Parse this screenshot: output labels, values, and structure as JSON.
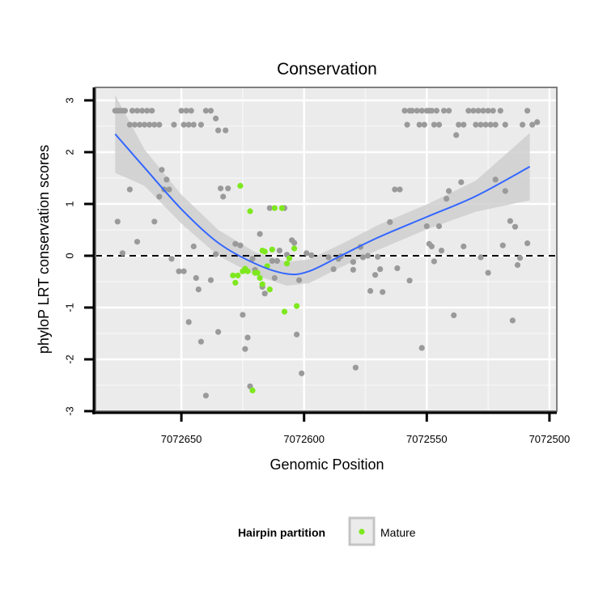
{
  "chart_data": {
    "type": "scatter",
    "title": "Conservation",
    "xlabel": "Genomic Position",
    "ylabel": "phyloP LRT conservation scores",
    "x_reversed": true,
    "xlim": [
      7072685,
      7072497
    ],
    "ylim": [
      -3,
      3.25
    ],
    "x_ticks": [
      7072650,
      7072600,
      7072550,
      7072500
    ],
    "x_tick_labels": [
      "7072650",
      "7072600",
      "7072550",
      "7072500"
    ],
    "y_ticks": [
      -3,
      -2,
      -1,
      0,
      1,
      2,
      3
    ],
    "y_tick_labels": [
      "-3",
      "-2",
      "-1",
      "0",
      "1",
      "2",
      "3"
    ],
    "reference_line": {
      "y": 0,
      "style": "dashed"
    },
    "legend": {
      "title": "Hairpin partition",
      "entries": [
        {
          "label": "Mature",
          "color": "#7ee81e"
        }
      ]
    },
    "colors": {
      "other": "#9a9a9a",
      "mature": "#7ee81e",
      "smooth": "#3366ff",
      "ribbon": "#cfcfcf",
      "panel": "#ebebeb"
    },
    "series": [
      {
        "name": "Other",
        "points": [
          [
            7072677,
            2.8
          ],
          [
            7072676,
            2.8
          ],
          [
            7072675,
            2.8
          ],
          [
            7072674,
            2.8
          ],
          [
            7072673,
            2.8
          ],
          [
            7072671,
            2.53
          ],
          [
            7072670,
            2.8
          ],
          [
            7072669,
            2.53
          ],
          [
            7072668,
            2.8
          ],
          [
            7072667,
            2.53
          ],
          [
            7072666,
            2.8
          ],
          [
            7072665,
            2.53
          ],
          [
            7072664,
            2.8
          ],
          [
            7072663,
            2.53
          ],
          [
            7072662,
            2.8
          ],
          [
            7072661,
            2.53
          ],
          [
            7072659,
            2.53
          ],
          [
            7072653,
            2.53
          ],
          [
            7072650,
            2.8
          ],
          [
            7072649,
            2.53
          ],
          [
            7072648,
            2.8
          ],
          [
            7072647,
            2.53
          ],
          [
            7072646,
            2.8
          ],
          [
            7072645,
            2.53
          ],
          [
            7072642,
            2.53
          ],
          [
            7072640,
            2.8
          ],
          [
            7072638,
            2.8
          ],
          [
            7072636,
            2.65
          ],
          [
            7072635,
            2.42
          ],
          [
            7072632,
            2.42
          ],
          [
            7072676,
            0.66
          ],
          [
            7072674,
            0.05
          ],
          [
            7072671,
            1.28
          ],
          [
            7072668,
            0.27
          ],
          [
            7072661,
            0.66
          ],
          [
            7072659,
            1.14
          ],
          [
            7072658,
            1.66
          ],
          [
            7072657,
            1.28
          ],
          [
            7072656,
            1.47
          ],
          [
            7072655,
            1.28
          ],
          [
            7072654,
            -0.06
          ],
          [
            7072651,
            -0.3
          ],
          [
            7072649,
            -0.3
          ],
          [
            7072647,
            -1.28
          ],
          [
            7072645,
            0.18
          ],
          [
            7072644,
            -0.43
          ],
          [
            7072643,
            -0.65
          ],
          [
            7072642,
            -1.66
          ],
          [
            7072640,
            -2.7
          ],
          [
            7072638,
            -0.47
          ],
          [
            7072636,
            0.03
          ],
          [
            7072635,
            -1.47
          ],
          [
            7072634,
            1.3
          ],
          [
            7072633,
            1.14
          ],
          [
            7072631,
            1.3
          ],
          [
            7072628,
            0.23
          ],
          [
            7072626,
            0.2
          ],
          [
            7072625,
            -1.14
          ],
          [
            7072624,
            -1.8
          ],
          [
            7072623,
            -1.58
          ],
          [
            7072622,
            -2.52
          ],
          [
            7072621,
            -0.06
          ],
          [
            7072620,
            -0.27
          ],
          [
            7072618,
            0.42
          ],
          [
            7072617,
            -0.6
          ],
          [
            7072616,
            -0.73
          ],
          [
            7072614,
            0.92
          ],
          [
            7072613,
            -0.1
          ],
          [
            7072612,
            -0.43
          ],
          [
            7072611,
            -0.1
          ],
          [
            7072610,
            0.1
          ],
          [
            7072608,
            0.92
          ],
          [
            7072607,
            0.02
          ],
          [
            7072605,
            0.3
          ],
          [
            7072604,
            0.25
          ],
          [
            7072603,
            -1.52
          ],
          [
            7072602,
            -0.47
          ],
          [
            7072601,
            -2.27
          ],
          [
            7072599,
            0.05
          ],
          [
            7072597,
            0.01
          ],
          [
            7072590,
            -0.03
          ],
          [
            7072588,
            -0.26
          ],
          [
            7072586,
            -0.06
          ],
          [
            7072585,
            -0.01
          ],
          [
            7072580,
            -0.12
          ],
          [
            7072580,
            -0.27
          ],
          [
            7072579,
            -2.16
          ],
          [
            7072577,
            0.17
          ],
          [
            7072576,
            -0.03
          ],
          [
            7072574,
            0.0
          ],
          [
            7072573,
            -0.68
          ],
          [
            7072571,
            -0.37
          ],
          [
            7072570,
            -0.02
          ],
          [
            7072569,
            -0.26
          ],
          [
            7072568,
            -0.7
          ],
          [
            7072565,
            0.65
          ],
          [
            7072563,
            1.28
          ],
          [
            7072561,
            1.28
          ],
          [
            7072562,
            -0.24
          ],
          [
            7072557,
            -0.48
          ],
          [
            7072552,
            -1.78
          ],
          [
            7072550,
            0.57
          ],
          [
            7072549,
            0.23
          ],
          [
            7072548,
            0.18
          ],
          [
            7072547,
            -0.11
          ],
          [
            7072545,
            0.57
          ],
          [
            7072544,
            0.1
          ],
          [
            7072542,
            1.1
          ],
          [
            7072541,
            1.25
          ],
          [
            7072539,
            -1.15
          ],
          [
            7072536,
            1.42
          ],
          [
            7072535,
            0.18
          ],
          [
            7072528,
            -0.03
          ],
          [
            7072525,
            -0.33
          ],
          [
            7072522,
            1.47
          ],
          [
            7072518,
            1.25
          ],
          [
            7072519,
            0.2
          ],
          [
            7072516,
            0.67
          ],
          [
            7072515,
            -1.25
          ],
          [
            7072514,
            0.56
          ],
          [
            7072513,
            -0.18
          ],
          [
            7072512,
            -0.04
          ],
          [
            7072509,
            0.24
          ],
          [
            7072559,
            2.8
          ],
          [
            7072558,
            2.53
          ],
          [
            7072557,
            2.8
          ],
          [
            7072556,
            2.8
          ],
          [
            7072554,
            2.8
          ],
          [
            7072553,
            2.53
          ],
          [
            7072552,
            2.8
          ],
          [
            7072551,
            2.53
          ],
          [
            7072550,
            2.8
          ],
          [
            7072549,
            2.8
          ],
          [
            7072548,
            2.8
          ],
          [
            7072547,
            2.53
          ],
          [
            7072546,
            2.8
          ],
          [
            7072545,
            2.53
          ],
          [
            7072543,
            2.8
          ],
          [
            7072541,
            2.8
          ],
          [
            7072538,
            2.33
          ],
          [
            7072537,
            2.53
          ],
          [
            7072535,
            2.53
          ],
          [
            7072533,
            2.8
          ],
          [
            7072531,
            2.8
          ],
          [
            7072530,
            2.53
          ],
          [
            7072529,
            2.8
          ],
          [
            7072528,
            2.53
          ],
          [
            7072527,
            2.8
          ],
          [
            7072526,
            2.53
          ],
          [
            7072525,
            2.8
          ],
          [
            7072524,
            2.53
          ],
          [
            7072523,
            2.8
          ],
          [
            7072522,
            2.53
          ],
          [
            7072520,
            2.8
          ],
          [
            7072518,
            2.53
          ],
          [
            7072511,
            2.53
          ],
          [
            7072509,
            2.8
          ],
          [
            7072507,
            2.53
          ],
          [
            7072505,
            2.58
          ]
        ]
      },
      {
        "name": "Mature",
        "points": [
          [
            7072604,
            0.14
          ],
          [
            7072606,
            -0.05
          ],
          [
            7072607,
            -0.15
          ],
          [
            7072609,
            0.92
          ],
          [
            7072612,
            0.92
          ],
          [
            7072613,
            0.12
          ],
          [
            7072616,
            0.08
          ],
          [
            7072617,
            0.1
          ],
          [
            7072615,
            -0.2
          ],
          [
            7072614,
            -0.65
          ],
          [
            7072617,
            -0.55
          ],
          [
            7072618,
            -0.43
          ],
          [
            7072619,
            -0.33
          ],
          [
            7072620,
            -0.33
          ],
          [
            7072621,
            -2.6
          ],
          [
            7072622,
            0.86
          ],
          [
            7072623,
            -0.3
          ],
          [
            7072624,
            -0.25
          ],
          [
            7072625,
            -0.3
          ],
          [
            7072626,
            1.35
          ],
          [
            7072627,
            -0.38
          ],
          [
            7072628,
            -0.52
          ],
          [
            7072629,
            -0.38
          ],
          [
            7072603,
            -0.97
          ],
          [
            7072608,
            -1.08
          ]
        ]
      }
    ],
    "smooth": {
      "method": "loess",
      "points": [
        [
          7072677,
          2.35
        ],
        [
          7072665,
          1.7
        ],
        [
          7072650,
          0.9
        ],
        [
          7072635,
          0.25
        ],
        [
          7072620,
          -0.15
        ],
        [
          7072607,
          -0.35
        ],
        [
          7072598,
          -0.3
        ],
        [
          7072585,
          0.0
        ],
        [
          7072570,
          0.35
        ],
        [
          7072550,
          0.75
        ],
        [
          7072530,
          1.15
        ],
        [
          7072508,
          1.72
        ]
      ],
      "ribbon_half_width": [
        0.75,
        0.35,
        0.28,
        0.25,
        0.22,
        0.23,
        0.23,
        0.22,
        0.24,
        0.24,
        0.3,
        0.65
      ]
    }
  }
}
